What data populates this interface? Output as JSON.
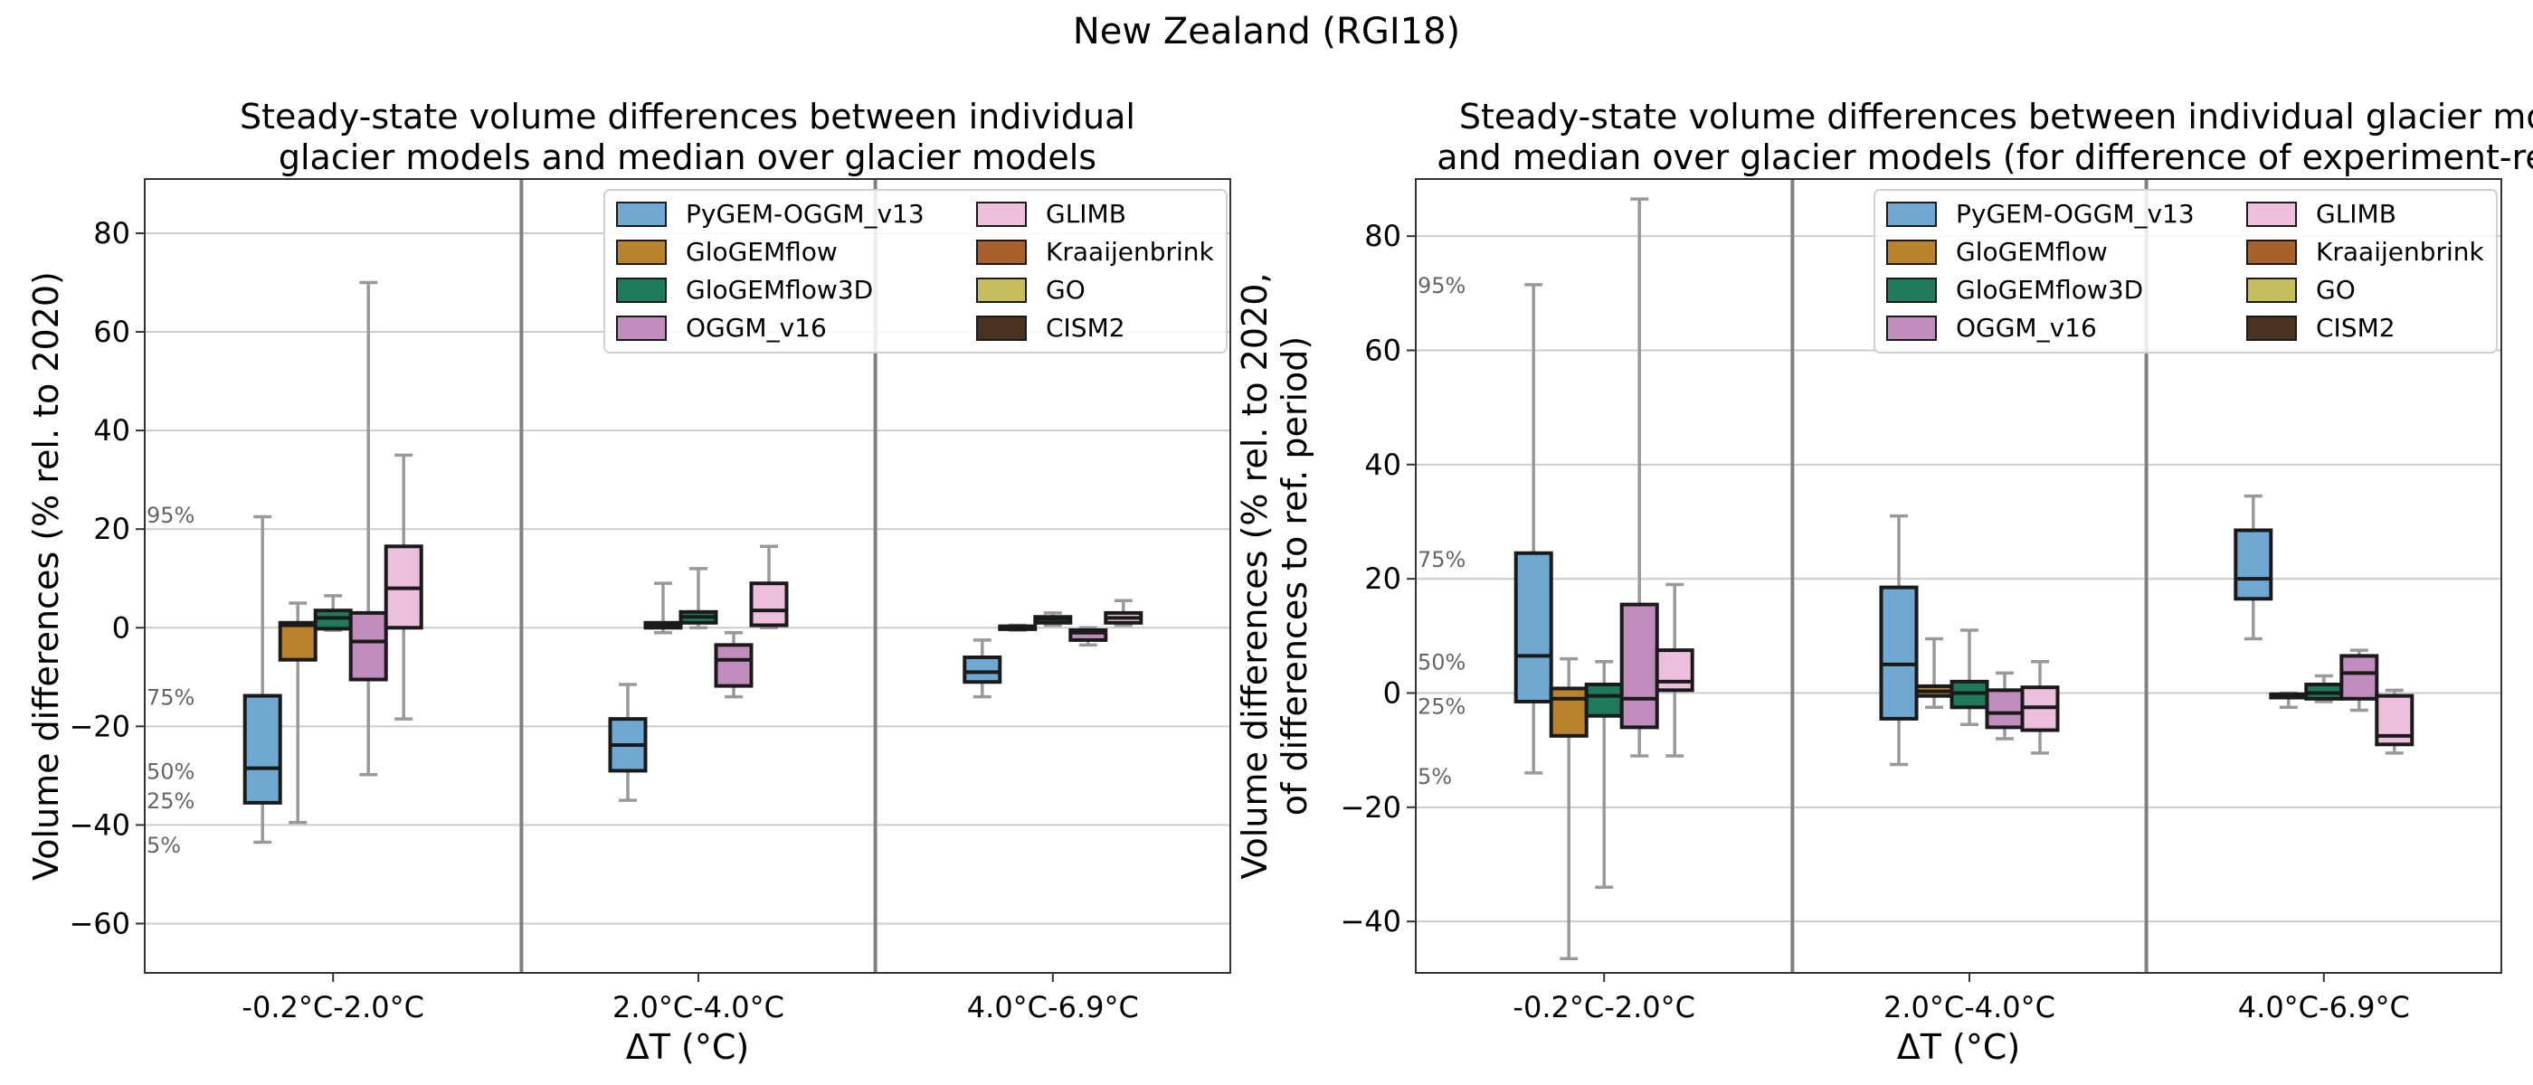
{
  "suptitle": "New Zealand (RGI18)",
  "colors": {
    "PyGEM-OGGM_v13": "#6fa8d0",
    "GloGEMflow": "#b8832c",
    "GloGEMflow3D": "#1e7a5a",
    "OGGM_v16": "#bf8cbb",
    "GLIMB": "#eebfdc",
    "Kraaijenbrink": "#a8602c",
    "GO": "#c6bd5c",
    "CISM2": "#4a3220"
  },
  "chart_data": [
    {
      "type": "box",
      "title": [
        "Steady-state volume differences between individual",
        "glacier models and median over glacier models"
      ],
      "xlabel": "ΔT (°C)",
      "ylabel": [
        "Volume differences (% rel. to 2020)"
      ],
      "ylim": [
        -70,
        91
      ],
      "yticks": [
        -60,
        -40,
        -20,
        0,
        20,
        40,
        60,
        80
      ],
      "grid": true,
      "legend_placement": "top-right",
      "legend_entries": [
        "PyGEM-OGGM_v13",
        "GloGEMflow",
        "GloGEMflow3D",
        "OGGM_v16",
        "GLIMB",
        "Kraaijenbrink",
        "GO",
        "CISM2"
      ],
      "categories": [
        "-0.2°C-2.0°C",
        "2.0°C-4.0°C",
        "4.0°C-6.9°C"
      ],
      "annotations": [
        {
          "text": "95%",
          "y": 23
        },
        {
          "text": "75%",
          "y": -14
        },
        {
          "text": "50%",
          "y": -29
        },
        {
          "text": "25%",
          "y": -35
        },
        {
          "text": "5%",
          "y": -44
        }
      ],
      "boxes": [
        {
          "category": 0,
          "model": "PyGEM-OGGM_v13",
          "p5": -43.5,
          "q1": -35.5,
          "median": -28.5,
          "q3": -13.8,
          "p95": 22.5
        },
        {
          "category": 0,
          "model": "GloGEMflow",
          "p5": -39.5,
          "q1": -6.5,
          "median": 0.5,
          "q3": 1.0,
          "p95": 5.0
        },
        {
          "category": 0,
          "model": "GloGEMflow3D",
          "p5": -0.5,
          "q1": -0.2,
          "median": 2.0,
          "q3": 3.5,
          "p95": 6.5
        },
        {
          "category": 0,
          "model": "OGGM_v16",
          "p5": -29.8,
          "q1": -10.5,
          "median": -2.8,
          "q3": 3.0,
          "p95": 70.0
        },
        {
          "category": 0,
          "model": "GLIMB",
          "p5": -18.5,
          "q1": 0.0,
          "median": 8.0,
          "q3": 16.5,
          "p95": 35.0
        },
        {
          "category": 1,
          "model": "PyGEM-OGGM_v13",
          "p5": -35.0,
          "q1": -29.0,
          "median": -23.8,
          "q3": -18.5,
          "p95": -11.5
        },
        {
          "category": 1,
          "model": "GloGEMflow",
          "p5": -1.0,
          "q1": 0.0,
          "median": 0.5,
          "q3": 1.0,
          "p95": 9.0
        },
        {
          "category": 1,
          "model": "GloGEMflow3D",
          "p5": 0.0,
          "q1": 1.0,
          "median": 2.2,
          "q3": 3.2,
          "p95": 12.0
        },
        {
          "category": 1,
          "model": "OGGM_v16",
          "p5": -14.0,
          "q1": -11.8,
          "median": -6.5,
          "q3": -3.5,
          "p95": -1.0
        },
        {
          "category": 1,
          "model": "GLIMB",
          "p5": 0.0,
          "q1": 0.5,
          "median": 3.5,
          "q3": 9.0,
          "p95": 16.5
        },
        {
          "category": 2,
          "model": "PyGEM-OGGM_v13",
          "p5": -14.0,
          "q1": -11.0,
          "median": -9.0,
          "q3": -6.0,
          "p95": -2.5
        },
        {
          "category": 2,
          "model": "GloGEMflow",
          "p5": -0.5,
          "q1": -0.3,
          "median": 0.0,
          "q3": 0.3,
          "p95": 0.5
        },
        {
          "category": 2,
          "model": "GloGEMflow3D",
          "p5": 0.5,
          "q1": 1.0,
          "median": 1.8,
          "q3": 2.2,
          "p95": 3.0
        },
        {
          "category": 2,
          "model": "OGGM_v16",
          "p5": -3.5,
          "q1": -2.5,
          "median": -1.0,
          "q3": -0.5,
          "p95": 0.0
        },
        {
          "category": 2,
          "model": "GLIMB",
          "p5": 0.5,
          "q1": 1.0,
          "median": 2.0,
          "q3": 3.0,
          "p95": 5.5
        }
      ]
    },
    {
      "type": "box",
      "title": [
        "Steady-state volume differences between individual glacier mode",
        "and median over glacier models (for difference of experiment-ref pe"
      ],
      "xlabel": "ΔT (°C)",
      "ylabel": [
        "Volume differences (% rel. to 2020,",
        "of differences to ref. period)"
      ],
      "ylim": [
        -49,
        90
      ],
      "yticks": [
        -40,
        -20,
        0,
        20,
        40,
        60,
        80
      ],
      "grid": true,
      "legend_placement": "top-right",
      "legend_entries": [
        "PyGEM-OGGM_v13",
        "GloGEMflow",
        "GloGEMflow3D",
        "OGGM_v16",
        "GLIMB",
        "Kraaijenbrink",
        "GO",
        "CISM2"
      ],
      "categories": [
        "-0.2°C-2.0°C",
        "2.0°C-4.0°C",
        "4.0°C-6.9°C"
      ],
      "annotations": [
        {
          "text": "95%",
          "y": 71.5
        },
        {
          "text": "75%",
          "y": 23.5
        },
        {
          "text": "50%",
          "y": 5.5
        },
        {
          "text": "25%",
          "y": -2.2
        },
        {
          "text": "5%",
          "y": -14.5
        }
      ],
      "boxes": [
        {
          "category": 0,
          "model": "PyGEM-OGGM_v13",
          "p5": -14.0,
          "q1": -1.5,
          "median": 6.5,
          "q3": 24.5,
          "p95": 71.5
        },
        {
          "category": 0,
          "model": "GloGEMflow",
          "p5": -46.5,
          "q1": -7.5,
          "median": -1.0,
          "q3": 0.8,
          "p95": 6.0
        },
        {
          "category": 0,
          "model": "GloGEMflow3D",
          "p5": -34.0,
          "q1": -4.0,
          "median": -0.5,
          "q3": 1.5,
          "p95": 5.5
        },
        {
          "category": 0,
          "model": "OGGM_v16",
          "p5": -11.0,
          "q1": -6.0,
          "median": -1.0,
          "q3": 15.5,
          "p95": 86.5
        },
        {
          "category": 0,
          "model": "GLIMB",
          "p5": -11.0,
          "q1": 0.5,
          "median": 2.0,
          "q3": 7.5,
          "p95": 19.0
        },
        {
          "category": 1,
          "model": "PyGEM-OGGM_v13",
          "p5": -12.5,
          "q1": -4.5,
          "median": 5.0,
          "q3": 18.5,
          "p95": 31.0
        },
        {
          "category": 1,
          "model": "GloGEMflow",
          "p5": -2.5,
          "q1": -0.5,
          "median": 0.3,
          "q3": 1.2,
          "p95": 9.5
        },
        {
          "category": 1,
          "model": "GloGEMflow3D",
          "p5": -5.5,
          "q1": -2.5,
          "median": 0.0,
          "q3": 2.0,
          "p95": 11.0
        },
        {
          "category": 1,
          "model": "OGGM_v16",
          "p5": -8.0,
          "q1": -6.0,
          "median": -3.5,
          "q3": 0.5,
          "p95": 3.5
        },
        {
          "category": 1,
          "model": "GLIMB",
          "p5": -10.5,
          "q1": -6.5,
          "median": -2.5,
          "q3": 1.0,
          "p95": 5.5
        },
        {
          "category": 2,
          "model": "PyGEM-OGGM_v13",
          "p5": 9.5,
          "q1": 16.5,
          "median": 20.0,
          "q3": 28.5,
          "p95": 34.5
        },
        {
          "category": 2,
          "model": "GloGEMflow",
          "p5": -2.5,
          "q1": -0.8,
          "median": -0.5,
          "q3": -0.2,
          "p95": 0.0
        },
        {
          "category": 2,
          "model": "GloGEMflow3D",
          "p5": -1.5,
          "q1": -1.0,
          "median": 0.0,
          "q3": 1.5,
          "p95": 3.0
        },
        {
          "category": 2,
          "model": "OGGM_v16",
          "p5": -3.0,
          "q1": -1.0,
          "median": 3.5,
          "q3": 6.5,
          "p95": 7.5
        },
        {
          "category": 2,
          "model": "GLIMB",
          "p5": -10.5,
          "q1": -9.0,
          "median": -7.5,
          "q3": -0.5,
          "p95": 0.5
        }
      ]
    }
  ]
}
